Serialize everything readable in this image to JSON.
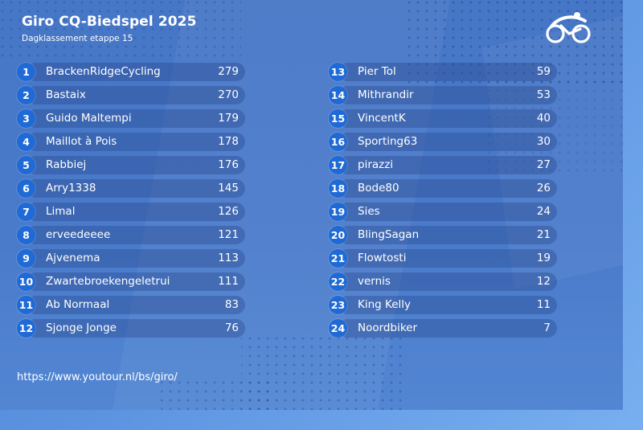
{
  "header": {
    "title": "Giro CQ-Biedspel 2025",
    "subtitle": "Dagklassement etappe 15"
  },
  "logo": {
    "icon": "cyclist-logo-icon"
  },
  "colors": {
    "background": "#4a7bcb",
    "badge": "#1f6ad6",
    "row": "#3a5fae",
    "text": "#ffffff"
  },
  "standings": {
    "left": [
      {
        "rank": "1",
        "name": "BrackenRidgeCycling",
        "points": "279"
      },
      {
        "rank": "2",
        "name": "Bastaix",
        "points": "270"
      },
      {
        "rank": "3",
        "name": "Guido Maltempi",
        "points": "179"
      },
      {
        "rank": "4",
        "name": "Maillot à Pois",
        "points": "178"
      },
      {
        "rank": "5",
        "name": "Rabbiej",
        "points": "176"
      },
      {
        "rank": "6",
        "name": "Arry1338",
        "points": "145"
      },
      {
        "rank": "7",
        "name": "Limal",
        "points": "126"
      },
      {
        "rank": "8",
        "name": "erveedeeee",
        "points": "121"
      },
      {
        "rank": "9",
        "name": "Ajvenema",
        "points": "113"
      },
      {
        "rank": "10",
        "name": "Zwartebroekengeletrui",
        "points": "111"
      },
      {
        "rank": "11",
        "name": "Ab Normaal",
        "points": "83"
      },
      {
        "rank": "12",
        "name": "Sjonge Jonge",
        "points": "76"
      }
    ],
    "right": [
      {
        "rank": "13",
        "name": "Pier Tol",
        "points": "59"
      },
      {
        "rank": "14",
        "name": "Mithrandir",
        "points": "53"
      },
      {
        "rank": "15",
        "name": "VincentK",
        "points": "40"
      },
      {
        "rank": "16",
        "name": "Sporting63",
        "points": "30"
      },
      {
        "rank": "17",
        "name": "pirazzi",
        "points": "27"
      },
      {
        "rank": "18",
        "name": "Bode80",
        "points": "26"
      },
      {
        "rank": "19",
        "name": "Sies",
        "points": "24"
      },
      {
        "rank": "20",
        "name": "BlingSagan",
        "points": "21"
      },
      {
        "rank": "21",
        "name": "Flowtosti",
        "points": "19"
      },
      {
        "rank": "22",
        "name": "vernis",
        "points": "12"
      },
      {
        "rank": "23",
        "name": "King Kelly",
        "points": "11"
      },
      {
        "rank": "24",
        "name": "Noordbiker",
        "points": "7"
      }
    ]
  },
  "footer": {
    "url": "https://www.youtour.nl/bs/giro/"
  }
}
